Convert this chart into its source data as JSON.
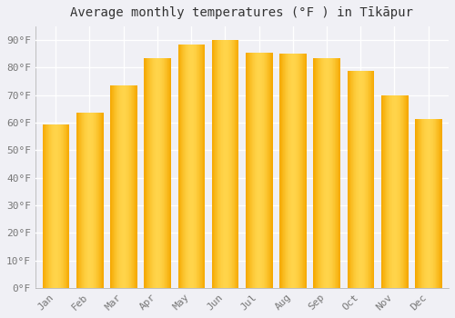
{
  "title": "Average monthly temperatures (°F ) in Tīkāpur",
  "months": [
    "Jan",
    "Feb",
    "Mar",
    "Apr",
    "May",
    "Jun",
    "Jul",
    "Aug",
    "Sep",
    "Oct",
    "Nov",
    "Dec"
  ],
  "values": [
    59.5,
    63.5,
    73.5,
    83.5,
    88.5,
    90.0,
    85.5,
    85.0,
    83.5,
    79.0,
    70.0,
    61.5
  ],
  "bar_color_dark": "#F5A800",
  "bar_color_light": "#FFD44A",
  "ylim": [
    0,
    95
  ],
  "yticks": [
    0,
    10,
    20,
    30,
    40,
    50,
    60,
    70,
    80,
    90
  ],
  "ytick_labels": [
    "0°F",
    "10°F",
    "20°F",
    "30°F",
    "40°F",
    "50°F",
    "60°F",
    "70°F",
    "80°F",
    "90°F"
  ],
  "background_color": "#f0f0f5",
  "plot_bg_color": "#f0f0f5",
  "grid_color": "#ffffff",
  "title_fontsize": 10,
  "tick_fontsize": 8,
  "bar_width": 0.78
}
